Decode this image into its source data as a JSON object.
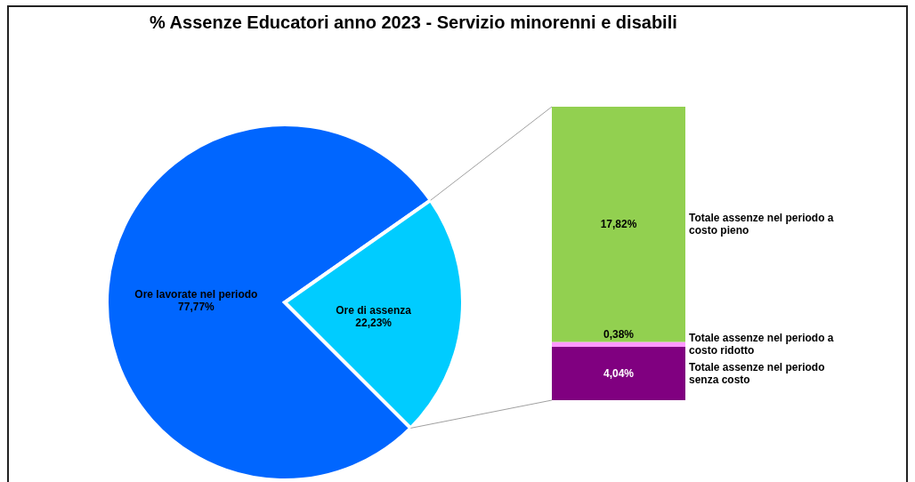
{
  "chart_data": [
    {
      "type": "pie",
      "title": "% Assenze Educatori anno 2023 - Servizio minorenni e disabili",
      "categories": [
        "Ore lavorate nel periodo",
        "Ore di assenza"
      ],
      "values": [
        77.77,
        22.23
      ],
      "colors": [
        "#0066ff",
        "#00ccff"
      ],
      "value_labels": [
        "77,77%",
        "22,23%"
      ]
    },
    {
      "type": "bar",
      "stacked": true,
      "categories": [
        null
      ],
      "series": [
        {
          "name": "Totale assenze nel periodo senza costo",
          "color": "#800080",
          "values": [
            4.04
          ],
          "value_labels": [
            "4,04%"
          ]
        },
        {
          "name": "Totale assenze nel periodo a costo ridotto",
          "color": "#ff99ff",
          "values": [
            0.38
          ],
          "value_labels": [
            "0,38%"
          ]
        },
        {
          "name": "Totale assenze nel periodo a costo pieno",
          "color": "#92d050",
          "values": [
            17.82
          ],
          "value_labels": [
            "17,82%"
          ]
        }
      ]
    }
  ]
}
